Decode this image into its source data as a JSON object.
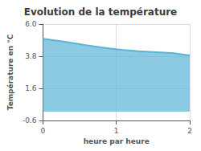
{
  "chart_data": {
    "type": "area",
    "title": "Evolution de la température",
    "xlabel": "heure par heure",
    "ylabel": "Température en °C",
    "x": [
      0.0,
      0.1,
      0.2,
      0.3,
      0.4,
      0.5,
      0.6,
      0.7,
      0.8,
      0.9,
      1.0,
      1.1,
      1.2,
      1.3,
      1.4,
      1.5,
      1.6,
      1.7,
      1.8,
      1.9,
      2.0
    ],
    "values": [
      5.0,
      4.93,
      4.86,
      4.79,
      4.71,
      4.63,
      4.55,
      4.47,
      4.4,
      4.34,
      4.28,
      4.23,
      4.19,
      4.15,
      4.12,
      4.09,
      4.06,
      4.03,
      4.0,
      3.92,
      3.85
    ],
    "color": "#5ab4d6",
    "xlim": [
      0,
      2
    ],
    "xticks": [
      0,
      1,
      2
    ],
    "ylim": [
      -0.6,
      6.0
    ],
    "yticks": [
      -0.6,
      1.6,
      3.8,
      {
        "value": 6.0,
        "label": "6.0"
      }
    ],
    "grid": true
  }
}
